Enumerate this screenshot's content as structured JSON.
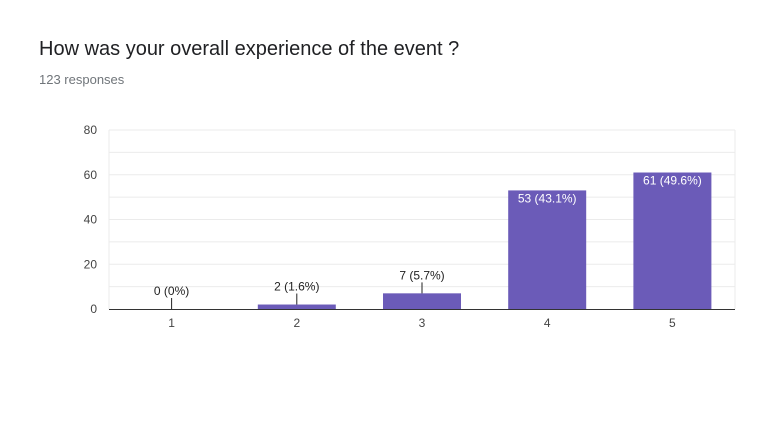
{
  "question": {
    "title": "How was your overall experience of the event ?",
    "responses": "123 responses"
  },
  "colors": {
    "bar": "#6b5bb8",
    "bar_label_inside": "#ffffff",
    "bar_label_outside": "#222222",
    "grid": "#ebebeb",
    "axis": "#333333",
    "tick_text": "#444444"
  },
  "chart_data": {
    "type": "bar",
    "categories": [
      "1",
      "2",
      "3",
      "4",
      "5"
    ],
    "values": [
      0,
      2,
      7,
      53,
      61
    ],
    "data_labels": [
      "0 (0%)",
      "2 (1.6%)",
      "7 (5.7%)",
      "53 (43.1%)",
      "61 (49.6%)"
    ],
    "y_ticks": [
      0,
      20,
      40,
      60,
      80
    ],
    "ylim": [
      0,
      80
    ],
    "grid": true,
    "title": "How was your overall experience of the event ?",
    "xlabel": "",
    "ylabel": ""
  }
}
